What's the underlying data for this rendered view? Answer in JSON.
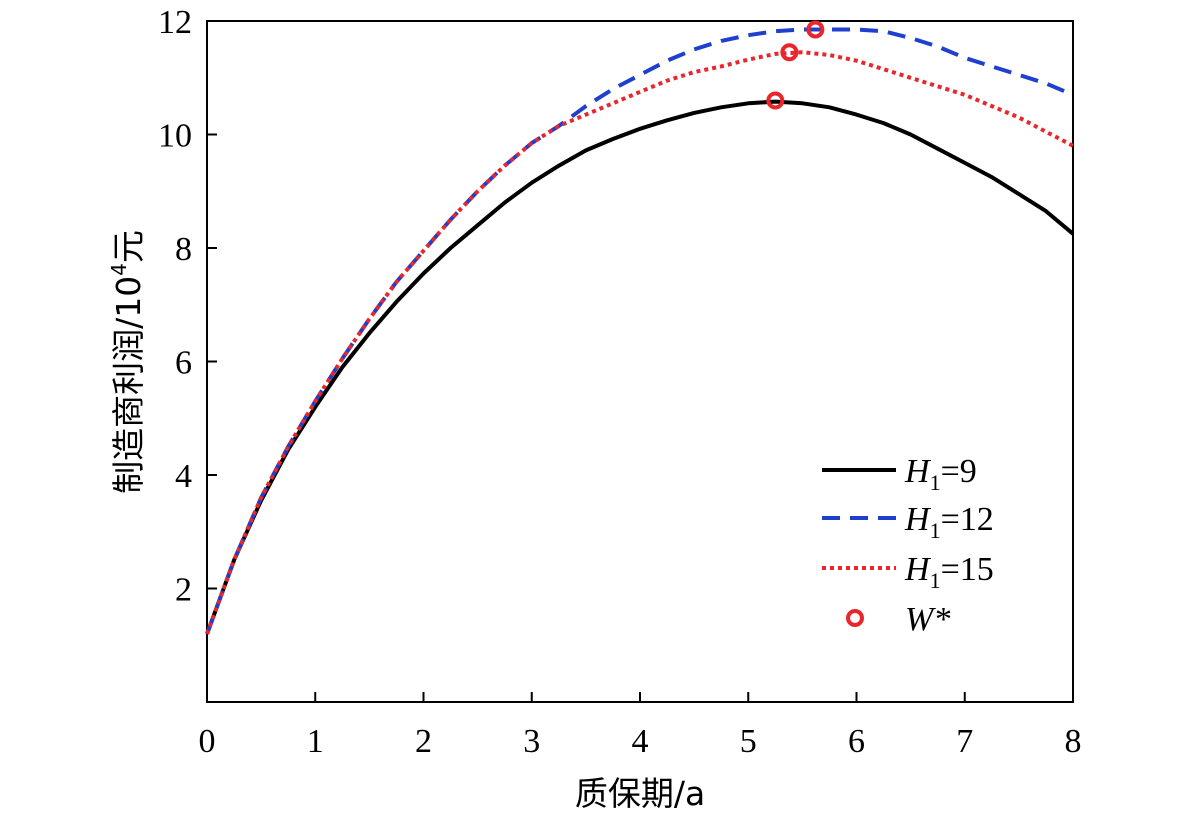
{
  "chart_data": {
    "type": "line",
    "title": "",
    "xlabel": "质保期/a",
    "ylabel_main": "制造商利润/10",
    "ylabel_sup": "4",
    "ylabel_unit": "元",
    "xlim": [
      0,
      8
    ],
    "ylim": [
      0,
      12
    ],
    "xticks": [
      0,
      1,
      2,
      3,
      4,
      5,
      6,
      7,
      8
    ],
    "yticks": [
      2,
      4,
      6,
      8,
      10,
      12
    ],
    "grid": false,
    "legend_position": "bottom-right",
    "series": [
      {
        "name": "H1=9",
        "legend_main": "H",
        "legend_sub": "1",
        "legend_rest": "=9",
        "color": "#000000",
        "style": "solid",
        "x": [
          0.0,
          0.25,
          0.5,
          0.75,
          1.0,
          1.25,
          1.5,
          1.75,
          2.0,
          2.25,
          2.5,
          2.75,
          3.0,
          3.25,
          3.5,
          3.75,
          4.0,
          4.25,
          4.5,
          4.75,
          5.0,
          5.25,
          5.5,
          5.75,
          6.0,
          6.25,
          6.5,
          6.75,
          7.0,
          7.25,
          7.5,
          7.75,
          8.0
        ],
        "y": [
          1.2,
          2.5,
          3.55,
          4.45,
          5.2,
          5.9,
          6.5,
          7.05,
          7.55,
          8.0,
          8.4,
          8.8,
          9.15,
          9.45,
          9.72,
          9.92,
          10.1,
          10.25,
          10.38,
          10.48,
          10.55,
          10.58,
          10.55,
          10.48,
          10.35,
          10.2,
          10.0,
          9.75,
          9.5,
          9.25,
          8.95,
          8.65,
          8.25
        ]
      },
      {
        "name": "H1=12",
        "legend_main": "H",
        "legend_sub": "1",
        "legend_rest": "=12",
        "color": "#1f3fce",
        "style": "dashed",
        "x": [
          0.0,
          0.25,
          0.5,
          0.75,
          1.0,
          1.25,
          1.5,
          1.75,
          2.0,
          2.25,
          2.5,
          2.75,
          3.0,
          3.25,
          3.5,
          3.75,
          4.0,
          4.25,
          4.5,
          4.75,
          5.0,
          5.25,
          5.5,
          5.75,
          6.0,
          6.25,
          6.5,
          6.75,
          7.0,
          7.25,
          7.5,
          7.75,
          8.0
        ],
        "y": [
          1.2,
          2.5,
          3.6,
          4.5,
          5.3,
          6.05,
          6.75,
          7.4,
          7.95,
          8.5,
          9.0,
          9.45,
          9.85,
          10.15,
          10.5,
          10.8,
          11.05,
          11.3,
          11.5,
          11.65,
          11.75,
          11.82,
          11.85,
          11.85,
          11.85,
          11.82,
          11.7,
          11.55,
          11.35,
          11.2,
          11.05,
          10.9,
          10.7
        ]
      },
      {
        "name": "H1=15",
        "legend_main": "H",
        "legend_sub": "1",
        "legend_rest": "=15",
        "color": "#e8262b",
        "style": "dotted",
        "x": [
          0.0,
          0.25,
          0.5,
          0.75,
          1.0,
          1.25,
          1.5,
          1.75,
          2.0,
          2.25,
          2.5,
          2.75,
          3.0,
          3.25,
          3.5,
          3.75,
          4.0,
          4.25,
          4.5,
          4.75,
          5.0,
          5.25,
          5.5,
          5.75,
          6.0,
          6.25,
          6.5,
          6.75,
          7.0,
          7.25,
          7.5,
          7.75,
          8.0
        ],
        "y": [
          1.2,
          2.5,
          3.6,
          4.5,
          5.3,
          6.05,
          6.75,
          7.4,
          7.95,
          8.5,
          9.0,
          9.45,
          9.85,
          10.15,
          10.35,
          10.55,
          10.75,
          10.95,
          11.1,
          11.2,
          11.32,
          11.42,
          11.45,
          11.4,
          11.3,
          11.15,
          11.0,
          10.85,
          10.7,
          10.5,
          10.3,
          10.05,
          9.8
        ]
      }
    ],
    "markers": {
      "name": "W*",
      "legend_label": "W*",
      "color": "#e8262b",
      "shape": "open-circle",
      "points": [
        {
          "x": 5.25,
          "y": 10.6
        },
        {
          "x": 5.38,
          "y": 11.45
        },
        {
          "x": 5.62,
          "y": 11.85
        }
      ]
    }
  }
}
